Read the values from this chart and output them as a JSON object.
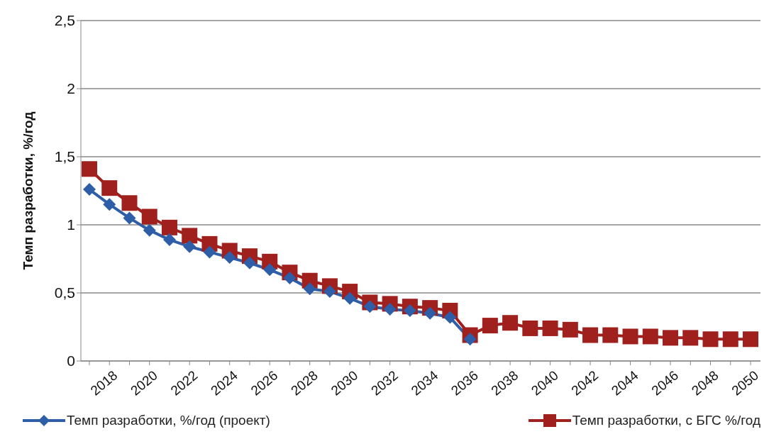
{
  "chart_data": {
    "type": "line",
    "ylabel": "Темп разработки, %/год",
    "categories": [
      null,
      "2018",
      null,
      "2020",
      null,
      "2022",
      null,
      "2024",
      null,
      "2026",
      null,
      "2028",
      null,
      "2030",
      null,
      "2032",
      null,
      "2034",
      null,
      "2036",
      null,
      "2038",
      null,
      "2040",
      null,
      "2042",
      null,
      "2044",
      null,
      "2046",
      null,
      "2048",
      null,
      "2050"
    ],
    "series": [
      {
        "name": "Темп разработки, %/год (проект)",
        "color": "#2e5ea8",
        "marker": "diamond",
        "values": [
          1.26,
          1.15,
          1.05,
          0.96,
          0.89,
          0.84,
          0.8,
          0.76,
          0.72,
          0.67,
          0.61,
          0.53,
          0.51,
          0.46,
          0.4,
          0.38,
          0.37,
          0.35,
          0.32,
          0.16,
          null,
          null,
          null,
          null,
          null,
          null,
          null,
          null,
          null,
          null,
          null,
          null,
          null,
          null
        ]
      },
      {
        "name": "Темп разработки, с БГС %/год",
        "color": "#a0201e",
        "marker": "square",
        "values": [
          1.41,
          1.27,
          1.16,
          1.06,
          0.98,
          0.92,
          0.86,
          0.81,
          0.77,
          0.73,
          0.65,
          0.59,
          0.55,
          0.51,
          0.43,
          0.42,
          0.4,
          0.39,
          0.37,
          0.19,
          0.26,
          0.28,
          0.24,
          0.24,
          0.23,
          0.19,
          0.19,
          0.18,
          0.18,
          0.17,
          0.17,
          0.16,
          0.16,
          0.16
        ]
      }
    ],
    "ylim": [
      0,
      2.5
    ],
    "yticks": [
      0,
      {
        "value": 0.5,
        "label": "0,5"
      },
      1,
      {
        "value": 1.5,
        "label": "1,5"
      },
      2,
      {
        "value": 2.5,
        "label": "2,5"
      }
    ],
    "grid": "y",
    "legend": "bottom",
    "line_style": "solid"
  }
}
